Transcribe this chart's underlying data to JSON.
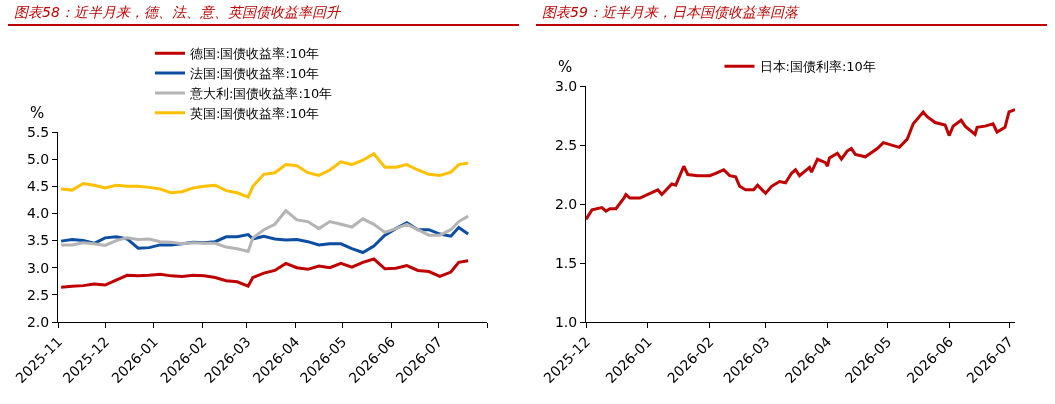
{
  "chart_data": [
    {
      "type": "line",
      "title": "图表58：近半月来，德、法、意、英国债收益率回升",
      "ylabel": "%",
      "legend": "top",
      "grid": false,
      "line_style": "solid",
      "marker": "none",
      "xlim": [
        "2025-11-01",
        "2026-08-01"
      ],
      "xticks": [
        {
          "value": "2025-11-01",
          "label": "2025-11"
        },
        {
          "value": "2025-12-01",
          "label": "2025-12"
        },
        {
          "value": "2026-01-01",
          "label": "2026-01"
        },
        {
          "value": "2026-02-01",
          "label": "2026-02"
        },
        {
          "value": "2026-03-01",
          "label": "2026-03"
        },
        {
          "value": "2026-04-01",
          "label": "2026-04"
        },
        {
          "value": "2026-05-01",
          "label": "2026-05"
        },
        {
          "value": "2026-06-01",
          "label": "2026-06"
        },
        {
          "value": "2026-07-01",
          "label": "2026-07"
        },
        {
          "value": "2026-08-01",
          "label": null
        }
      ],
      "ylim": [
        2.0,
        5.5
      ],
      "yticks": [
        {
          "value": 2.0,
          "label": "2.0"
        },
        {
          "value": 2.5,
          "label": "2.5"
        },
        {
          "value": 3.0,
          "label": "3.0"
        },
        {
          "value": 3.5,
          "label": "3.5"
        },
        {
          "value": 4.0,
          "label": "4.0"
        },
        {
          "value": 4.5,
          "label": "4.5"
        },
        {
          "value": 5.0,
          "label": "5.0"
        },
        {
          "value": 5.5,
          "label": "5.5"
        }
      ],
      "x": [
        "2025-11-03",
        "2025-11-10",
        "2025-11-17",
        "2025-11-24",
        "2025-12-01",
        "2025-12-08",
        "2025-12-15",
        "2025-12-22",
        "2025-12-29",
        "2026-01-05",
        "2026-01-12",
        "2026-01-19",
        "2026-01-26",
        "2026-02-02",
        "2026-02-09",
        "2026-02-16",
        "2026-02-23",
        "2026-03-02",
        "2026-03-05",
        "2026-03-12",
        "2026-03-19",
        "2026-03-26",
        "2026-04-02",
        "2026-04-09",
        "2026-04-16",
        "2026-04-23",
        "2026-04-30",
        "2026-05-07",
        "2026-05-14",
        "2026-05-21",
        "2026-05-28",
        "2026-06-04",
        "2026-06-11",
        "2026-06-18",
        "2026-06-25",
        "2026-07-02",
        "2026-07-09",
        "2026-07-14",
        "2026-07-20"
      ],
      "series": [
        {
          "name": "德国:国债收益率:10年",
          "color": "#c00000",
          "values": [
            2.64,
            2.66,
            2.67,
            2.7,
            2.68,
            2.77,
            2.86,
            2.85,
            2.86,
            2.88,
            2.85,
            2.84,
            2.86,
            2.85,
            2.82,
            2.76,
            2.74,
            2.66,
            2.82,
            2.9,
            2.95,
            3.08,
            3.0,
            2.97,
            3.03,
            3.0,
            3.08,
            3.01,
            3.1,
            3.16,
            2.98,
            2.99,
            3.04,
            2.95,
            2.93,
            2.84,
            2.92,
            3.1,
            3.13
          ]
        },
        {
          "name": "法国:国债收益率:10年",
          "color": "#0b4ea2",
          "values": [
            3.49,
            3.52,
            3.5,
            3.45,
            3.55,
            3.57,
            3.53,
            3.36,
            3.37,
            3.42,
            3.42,
            3.44,
            3.47,
            3.46,
            3.48,
            3.57,
            3.57,
            3.61,
            3.53,
            3.58,
            3.53,
            3.51,
            3.52,
            3.48,
            3.42,
            3.44,
            3.44,
            3.35,
            3.28,
            3.4,
            3.6,
            3.72,
            3.83,
            3.7,
            3.7,
            3.62,
            3.58,
            3.74,
            3.62
          ]
        },
        {
          "name": "意大利:国债收益率:10年",
          "color": "#b4b4b4",
          "values": [
            3.42,
            3.42,
            3.46,
            3.44,
            3.41,
            3.5,
            3.55,
            3.52,
            3.53,
            3.48,
            3.47,
            3.44,
            3.46,
            3.45,
            3.45,
            3.38,
            3.35,
            3.3,
            3.55,
            3.7,
            3.8,
            4.05,
            3.88,
            3.85,
            3.72,
            3.85,
            3.8,
            3.75,
            3.9,
            3.8,
            3.65,
            3.72,
            3.8,
            3.7,
            3.6,
            3.6,
            3.7,
            3.85,
            3.95
          ]
        },
        {
          "name": "英国:国债收益率:10年",
          "color": "#ffc000",
          "values": [
            4.45,
            4.43,
            4.55,
            4.52,
            4.47,
            4.52,
            4.5,
            4.5,
            4.48,
            4.45,
            4.38,
            4.4,
            4.47,
            4.5,
            4.52,
            4.42,
            4.38,
            4.3,
            4.5,
            4.72,
            4.75,
            4.9,
            4.88,
            4.75,
            4.7,
            4.8,
            4.95,
            4.9,
            4.98,
            5.1,
            4.85,
            4.85,
            4.9,
            4.8,
            4.72,
            4.7,
            4.76,
            4.9,
            4.93
          ]
        }
      ]
    },
    {
      "type": "line",
      "title": "图表59：近半月来，日本国债收益率回落",
      "ylabel": "%",
      "legend": "top",
      "grid": false,
      "line_style": "solid",
      "marker": "none",
      "xlim": [
        "2025-12-01",
        "2026-07-04"
      ],
      "xticks": [
        {
          "value": "2025-12-01",
          "label": "2025-12"
        },
        {
          "value": "2026-01-01",
          "label": "2026-01"
        },
        {
          "value": "2026-02-01",
          "label": "2026-02"
        },
        {
          "value": "2026-03-01",
          "label": "2026-03"
        },
        {
          "value": "2026-04-01",
          "label": "2026-04"
        },
        {
          "value": "2026-05-01",
          "label": "2026-05"
        },
        {
          "value": "2026-06-01",
          "label": "2026-06"
        },
        {
          "value": "2026-07-01",
          "label": "2026-07"
        }
      ],
      "ylim": [
        1.0,
        3.0
      ],
      "yticks": [
        {
          "value": 1.0,
          "label": "1.0"
        },
        {
          "value": 1.5,
          "label": "1.5"
        },
        {
          "value": 2.0,
          "label": "2.0"
        },
        {
          "value": 2.5,
          "label": "2.5"
        },
        {
          "value": 3.0,
          "label": "3.0"
        }
      ],
      "x": [
        "2025-12-01",
        "2025-12-04",
        "2025-12-09",
        "2025-12-11",
        "2025-12-13",
        "2025-12-16",
        "2025-12-20",
        "2025-12-21",
        "2025-12-23",
        "2025-12-28",
        "2026-01-06",
        "2026-01-08",
        "2026-01-13",
        "2026-01-15",
        "2026-01-19",
        "2026-01-21",
        "2026-01-26",
        "2026-02-01",
        "2026-02-04",
        "2026-02-08",
        "2026-02-11",
        "2026-02-14",
        "2026-02-16",
        "2026-02-19",
        "2026-02-23",
        "2026-02-25",
        "2026-03-01",
        "2026-03-04",
        "2026-03-08",
        "2026-03-11",
        "2026-03-14",
        "2026-03-16",
        "2026-03-18",
        "2026-03-23",
        "2026-03-24",
        "2026-03-27",
        "2026-03-31",
        "2026-04-01",
        "2026-04-02",
        "2026-04-06",
        "2026-04-08",
        "2026-04-11",
        "2026-04-13",
        "2026-04-15",
        "2026-04-20",
        "2026-04-26",
        "2026-04-29",
        "2026-05-07",
        "2026-05-11",
        "2026-05-14",
        "2026-05-19",
        "2026-05-21",
        "2026-05-25",
        "2026-05-30",
        "2026-06-01",
        "2026-06-03",
        "2026-06-07",
        "2026-06-09",
        "2026-06-14",
        "2026-06-15",
        "2026-06-19",
        "2026-06-23",
        "2026-06-25",
        "2026-06-29",
        "2026-07-01",
        "2026-07-04"
      ],
      "series": [
        {
          "name": "日本:国债利率:10年",
          "color": "#c00000",
          "values": [
            1.87,
            1.95,
            1.97,
            1.94,
            1.96,
            1.96,
            2.05,
            2.08,
            2.05,
            2.05,
            2.12,
            2.08,
            2.17,
            2.16,
            2.32,
            2.25,
            2.24,
            2.24,
            2.26,
            2.29,
            2.24,
            2.23,
            2.15,
            2.12,
            2.12,
            2.16,
            2.09,
            2.15,
            2.19,
            2.18,
            2.26,
            2.29,
            2.24,
            2.31,
            2.27,
            2.38,
            2.35,
            2.32,
            2.39,
            2.43,
            2.38,
            2.45,
            2.47,
            2.42,
            2.4,
            2.47,
            2.52,
            2.48,
            2.55,
            2.68,
            2.78,
            2.74,
            2.69,
            2.67,
            2.58,
            2.66,
            2.71,
            2.66,
            2.59,
            2.65,
            2.66,
            2.68,
            2.61,
            2.65,
            2.78,
            2.8
          ]
        }
      ]
    }
  ]
}
